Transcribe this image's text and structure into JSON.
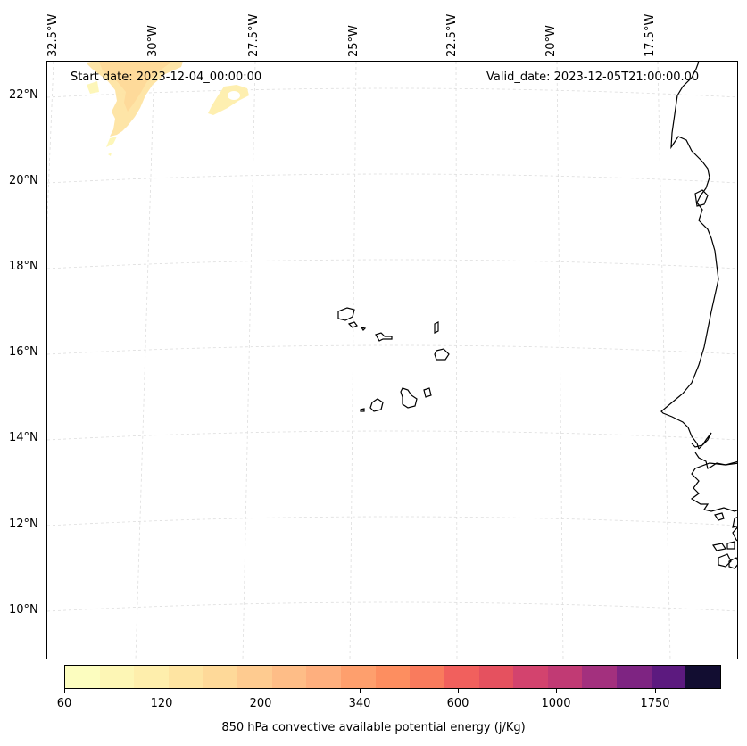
{
  "annotations": {
    "start_date": "Start date: 2023-12-04_00:00:00",
    "valid_date": "Valid_date: 2023-12-05T21:00:00.00"
  },
  "gridlines": {
    "latitude_labels": [
      "22°N",
      "20°N",
      "18°N",
      "16°N",
      "14°N",
      "12°N",
      "10°N"
    ],
    "longitude_labels": [
      "32.5°W",
      "30°W",
      "27.5°W",
      "25°W",
      "22.5°W",
      "20°W",
      "17.5°W"
    ]
  },
  "colorbar": {
    "title": "850 hPa convective available potential energy (j/Kg)",
    "tick_labels": [
      "60",
      "120",
      "200",
      "340",
      "600",
      "1000",
      "1750"
    ],
    "colors": [
      "#fcfdbf",
      "#fdf6b5",
      "#feeeac",
      "#fee4a2",
      "#fed999",
      "#fecb90",
      "#febd87",
      "#feaf7e",
      "#fe9f6d",
      "#fd8e60",
      "#f97b5d",
      "#f1605d",
      "#e5515f",
      "#d3436e",
      "#c13a74",
      "#a3307e",
      "#7e2482",
      "#5c1a7f",
      "#120d31"
    ],
    "hatch_color": "#cccccc"
  },
  "colors": {
    "coastline": "#000000",
    "gridline": "#dddddd",
    "cape_field": "#fed999"
  }
}
